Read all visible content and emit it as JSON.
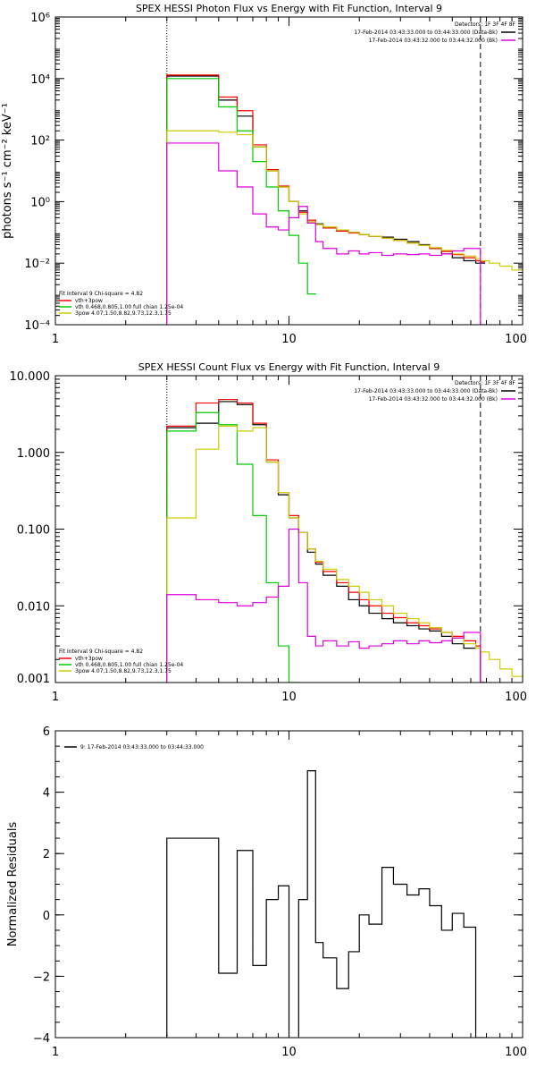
{
  "chart_data": [
    {
      "type": "line",
      "title": "SPEX HESSI Photon Flux vs Energy with Fit Function, Interval 9",
      "xlabel": "",
      "ylabel": "photons s⁻¹ cm⁻² keV⁻¹",
      "xscale": "log",
      "yscale": "log",
      "xlim": [
        1,
        100
      ],
      "ylim": [
        0.0001,
        1000000
      ],
      "xticks": [
        1,
        10,
        100
      ],
      "xtick_labels": [
        "1",
        "10",
        "100"
      ],
      "yticks": [
        0.0001,
        0.01,
        1,
        100,
        10000,
        1000000
      ],
      "ytick_labels": [
        "10⁻⁴",
        "10⁻²",
        "10⁰",
        "10²",
        "10⁴",
        "10⁶"
      ],
      "vlines": [
        {
          "x": 3,
          "style": "dotted"
        },
        {
          "x": 66,
          "style": "dashed"
        }
      ],
      "legend_top_right": {
        "header": "Detectors: 1F 3F 4F 8F",
        "entries": [
          {
            "label": "17-Feb-2014 03:43:33.000 to 03:44:33.000 (Data-Bk)",
            "color": "#000000"
          },
          {
            "label": "17-Feb-2014 03:43:32.000 to 03:44:32.000 (Bk)",
            "color": "#dd00dd"
          }
        ]
      },
      "legend_bottom_left": {
        "header": "Fit Interval 9   Chi-square = 4.82",
        "entries": [
          {
            "label": "vth+3pow",
            "color": "#ff0000"
          },
          {
            "label": "vth 0.468,0.805,1.00  full chian 1.25e-04",
            "color": "#00cc00"
          },
          {
            "label": "3pow 4.07,1.50,8.82,9.73,12.3,1.75",
            "color": "#cccc00"
          }
        ]
      },
      "series": [
        {
          "name": "17-Feb-2014 03:43:33.000 to 03:44:33.000 (Data-Bk)",
          "color": "#000000",
          "x": [
            3,
            4,
            5,
            6,
            7,
            8,
            9,
            10,
            11,
            12,
            13,
            14,
            16,
            18,
            20,
            22,
            25,
            28,
            32,
            36,
            40,
            45,
            50,
            56,
            63,
            66
          ],
          "y": [
            12000,
            12000,
            2000,
            600,
            60,
            10,
            3,
            1,
            0.5,
            0.22,
            0.19,
            0.14,
            0.11,
            0.1,
            0.085,
            0.075,
            0.07,
            0.06,
            0.05,
            0.04,
            0.03,
            0.02,
            0.015,
            0.012,
            0.01,
            0.01
          ]
        },
        {
          "name": "vth+3pow",
          "color": "#ff0000",
          "x": [
            3,
            4,
            5,
            6,
            7,
            8,
            9,
            10,
            11,
            12,
            13,
            14,
            16,
            18,
            20,
            22,
            25,
            28,
            32,
            36,
            40,
            45,
            50,
            56,
            63,
            66
          ],
          "y": [
            13000,
            13000,
            2500,
            900,
            70,
            11,
            3.2,
            1.0,
            0.45,
            0.25,
            0.18,
            0.14,
            0.11,
            0.095,
            0.085,
            0.075,
            0.065,
            0.055,
            0.045,
            0.038,
            0.03,
            0.024,
            0.019,
            0.015,
            0.012,
            0.011
          ]
        },
        {
          "name": "vth",
          "color": "#00cc00",
          "x": [
            3,
            4,
            5,
            6,
            7,
            8,
            9,
            10,
            11,
            12
          ],
          "y": [
            10000,
            10000,
            1200,
            200,
            20,
            3,
            0.5,
            0.08,
            0.01,
            0.001
          ]
        },
        {
          "name": "3pow",
          "color": "#cccc00",
          "x": [
            3,
            4,
            5,
            6,
            7,
            8,
            9,
            10,
            11,
            12,
            13,
            14,
            16,
            18,
            20,
            22,
            25,
            28,
            32,
            36,
            40,
            45,
            50,
            56,
            63,
            66,
            72,
            80,
            90
          ],
          "y": [
            200,
            200,
            180,
            150,
            60,
            10,
            3,
            1,
            0.4,
            0.22,
            0.18,
            0.15,
            0.12,
            0.1,
            0.085,
            0.075,
            0.065,
            0.055,
            0.045,
            0.038,
            0.032,
            0.026,
            0.02,
            0.017,
            0.014,
            0.012,
            0.01,
            0.008,
            0.006
          ]
        },
        {
          "name": "17-Feb-2014 03:43:32.000 to 03:44:32.000 (Bk)",
          "color": "#dd00dd",
          "x": [
            3,
            4,
            5,
            6,
            7,
            8,
            9,
            10,
            11,
            12,
            13,
            14,
            16,
            18,
            20,
            22,
            25,
            28,
            32,
            36,
            40,
            45,
            50,
            56,
            63,
            66
          ],
          "y": [
            80,
            80,
            10,
            3,
            0.4,
            0.15,
            0.12,
            0.3,
            0.7,
            0.2,
            0.05,
            0.03,
            0.02,
            0.025,
            0.02,
            0.022,
            0.018,
            0.02,
            0.019,
            0.02,
            0.018,
            0.02,
            0.025,
            0.03,
            0.03,
            0.0001
          ]
        }
      ]
    },
    {
      "type": "line",
      "title": "SPEX HESSI Count Flux vs Energy with Fit Function, Interval 9",
      "xlabel": "",
      "ylabel": "",
      "xscale": "log",
      "yscale": "log",
      "xlim": [
        1,
        100
      ],
      "ylim": [
        0.001,
        10
      ],
      "xticks": [
        1,
        10,
        100
      ],
      "xtick_labels": [
        "1",
        "10",
        "100"
      ],
      "yticks": [
        0.001,
        0.01,
        0.1,
        1,
        10
      ],
      "ytick_labels": [
        "0.001",
        "0.010",
        "0.100",
        "1.000",
        "10.000"
      ],
      "vlines": [
        {
          "x": 3,
          "style": "dotted"
        },
        {
          "x": 66,
          "style": "dashed"
        }
      ],
      "legend_top_right": {
        "header": "Detectors: 1F 3F 4F 8F",
        "entries": [
          {
            "label": "17-Feb-2014 03:43:33.000 to 03:44:33.000 (Data-Bk)",
            "color": "#000000"
          },
          {
            "label": "17-Feb-2014 03:43:32.000 to 03:44:32.000 (Bk)",
            "color": "#dd00dd"
          }
        ]
      },
      "legend_bottom_left": {
        "header": "Fit Interval 9   Chi-square = 4.82",
        "entries": [
          {
            "label": "vth+3pow",
            "color": "#ff0000"
          },
          {
            "label": "vth 0.468,0.805,1.00  full chian 1.25e-04",
            "color": "#00cc00"
          },
          {
            "label": "3pow 4.07,1.50,8.82,9.73,12.3,1.75",
            "color": "#cccc00"
          }
        ]
      },
      "series": [
        {
          "name": "17-Feb-2014 03:43:33.000 to 03:44:33.000 (Data-Bk)",
          "color": "#000000",
          "x": [
            3,
            4,
            5,
            6,
            7,
            8,
            9,
            10,
            11,
            12,
            13,
            14,
            16,
            18,
            20,
            22,
            25,
            28,
            32,
            36,
            40,
            45,
            50,
            56,
            63,
            66
          ],
          "y": [
            2.1,
            2.4,
            4.6,
            4.2,
            2.3,
            0.75,
            0.28,
            0.14,
            0.09,
            0.05,
            0.035,
            0.025,
            0.018,
            0.012,
            0.01,
            0.008,
            0.0068,
            0.006,
            0.0055,
            0.005,
            0.0047,
            0.004,
            0.0032,
            0.0028,
            0.003,
            0.001
          ]
        },
        {
          "name": "vth+3pow",
          "color": "#ff0000",
          "x": [
            3,
            4,
            5,
            6,
            7,
            8,
            9,
            10,
            11,
            12,
            13,
            14,
            16,
            18,
            20,
            22,
            25,
            28,
            32,
            36,
            40,
            45,
            50,
            56,
            63,
            66
          ],
          "y": [
            2.2,
            4.4,
            4.9,
            4.4,
            2.4,
            0.8,
            0.3,
            0.15,
            0.09,
            0.055,
            0.037,
            0.028,
            0.02,
            0.015,
            0.012,
            0.01,
            0.008,
            0.007,
            0.006,
            0.0055,
            0.005,
            0.0045,
            0.004,
            0.0035,
            0.003,
            0.001
          ]
        },
        {
          "name": "vth",
          "color": "#00cc00",
          "x": [
            3,
            4,
            5,
            6,
            7,
            8,
            9,
            10
          ],
          "y": [
            1.9,
            3.3,
            2.3,
            0.7,
            0.15,
            0.02,
            0.003,
            0.001
          ]
        },
        {
          "name": "3pow",
          "color": "#cccc00",
          "x": [
            3,
            4,
            5,
            6,
            7,
            8,
            9,
            10,
            11,
            12,
            13,
            14,
            16,
            18,
            20,
            22,
            25,
            28,
            32,
            36,
            40,
            45,
            50,
            56,
            63,
            66,
            72,
            80,
            90
          ],
          "y": [
            0.14,
            1.1,
            2.2,
            1.9,
            2.1,
            0.75,
            0.3,
            0.14,
            0.09,
            0.055,
            0.038,
            0.03,
            0.022,
            0.018,
            0.015,
            0.012,
            0.01,
            0.008,
            0.0068,
            0.006,
            0.0052,
            0.0045,
            0.0038,
            0.0032,
            0.0028,
            0.0025,
            0.002,
            0.0015,
            0.0012
          ]
        },
        {
          "name": "17-Feb-2014 03:43:32.000 to 03:44:32.000 (Bk)",
          "color": "#dd00dd",
          "x": [
            3,
            4,
            5,
            6,
            7,
            8,
            9,
            10,
            11,
            12,
            13,
            14,
            16,
            18,
            20,
            22,
            25,
            28,
            32,
            36,
            40,
            45,
            50,
            56,
            63,
            66
          ],
          "y": [
            0.014,
            0.012,
            0.011,
            0.01,
            0.011,
            0.013,
            0.018,
            0.1,
            0.02,
            0.004,
            0.003,
            0.0035,
            0.003,
            0.0034,
            0.0028,
            0.003,
            0.0032,
            0.0035,
            0.0032,
            0.0035,
            0.0033,
            0.0035,
            0.0038,
            0.0045,
            0.0045,
            0.001
          ]
        }
      ]
    },
    {
      "type": "line",
      "title": "",
      "xlabel": "",
      "ylabel": "Normalized Residuals",
      "xscale": "log",
      "yscale": "linear",
      "xlim": [
        1,
        100
      ],
      "ylim": [
        -4,
        6
      ],
      "xticks": [
        1,
        10,
        100
      ],
      "xtick_labels": [
        "1",
        "10",
        "100"
      ],
      "yticks": [
        -4,
        -2,
        0,
        2,
        4,
        6
      ],
      "ytick_labels": [
        "−4",
        "−2",
        "0",
        "2",
        "4",
        "6"
      ],
      "legend_top_left": {
        "entries": [
          {
            "label": "9: 17-Feb-2014 03:43:33.000 to 03:44:33.000",
            "color": "#000000"
          }
        ]
      },
      "series": [
        {
          "name": "9: 17-Feb-2014 03:43:33.000 to 03:44:33.000",
          "color": "#000000",
          "x": [
            3,
            4,
            5,
            6,
            7,
            8,
            9,
            10,
            11,
            12,
            13,
            14,
            16,
            18,
            20,
            22,
            25,
            28,
            32,
            36,
            40,
            45,
            50,
            56,
            63,
            66
          ],
          "y": [
            2.5,
            2.5,
            -1.9,
            2.1,
            -1.65,
            0.5,
            0.95,
            -4.1,
            0.5,
            4.7,
            -0.9,
            -1.4,
            -2.4,
            -1.2,
            0.0,
            -0.3,
            1.55,
            1.0,
            0.65,
            0.85,
            0.3,
            -0.5,
            0.05,
            -0.4,
            -4.0,
            -4.0
          ]
        }
      ]
    }
  ]
}
